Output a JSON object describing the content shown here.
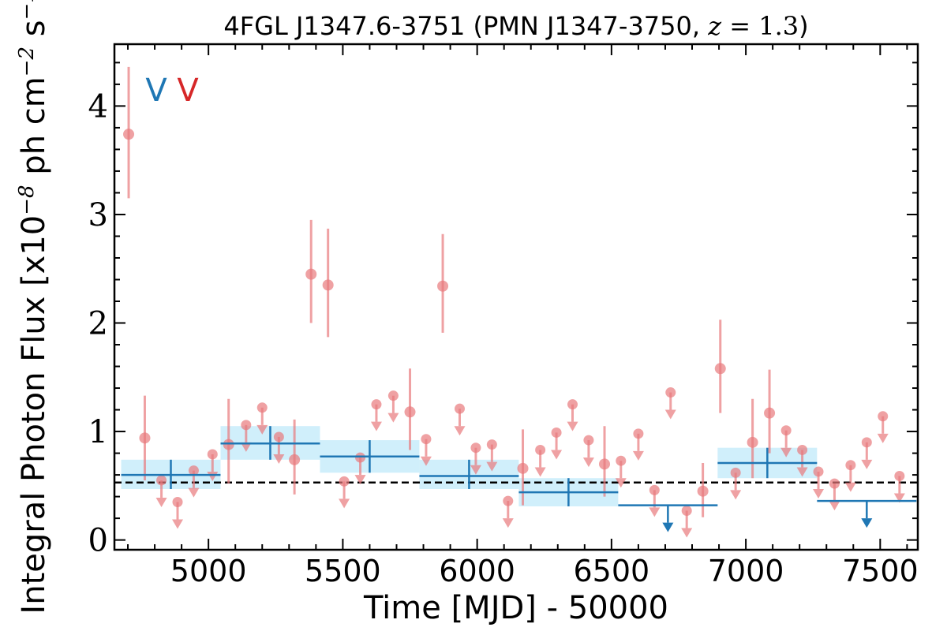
{
  "chart_data": {
    "type": "scatter",
    "title_parts": {
      "prefix": "4FGL J1347.6-3751 (PMN J1347-3750, ",
      "z_var": "z",
      "z_eq": " = 1.3",
      "suffix": ")"
    },
    "xlabel": "Time [MJD] - 50000",
    "ylabel_parts": {
      "a": "Integral Photon Flux [x10",
      "exp1": "−8",
      "b": " ph cm",
      "exp2": "−2",
      "c": " s",
      "exp3": "−1",
      "d": "]"
    },
    "xlim": [
      4650,
      7640
    ],
    "ylim": [
      -0.09,
      4.57
    ],
    "xticks": [
      5000,
      5500,
      6000,
      6500,
      7000,
      7500
    ],
    "yticks": [
      0,
      1,
      2,
      3,
      4
    ],
    "markers": [
      {
        "text": "V",
        "color": "#1f77b4"
      },
      {
        "text": "V",
        "color": "#d62728"
      }
    ],
    "reference_level": 0.53,
    "colors": {
      "short_bins": "#e8797c",
      "long_bins": "#1f77b4",
      "long_band": "#c8ecfa"
    },
    "series": [
      {
        "kind": "short-bin detections with error bars",
        "points": [
          {
            "x": 4703,
            "y": 3.74,
            "lo": 3.15,
            "hi": 4.36
          },
          {
            "x": 4763,
            "y": 0.94,
            "lo": 0.55,
            "hi": 1.33
          },
          {
            "x": 5075,
            "y": 0.88,
            "lo": 0.52,
            "hi": 1.3
          },
          {
            "x": 5320,
            "y": 0.74,
            "lo": 0.42,
            "hi": 1.11
          },
          {
            "x": 5382,
            "y": 2.45,
            "lo": 2.0,
            "hi": 2.95
          },
          {
            "x": 5445,
            "y": 2.35,
            "lo": 1.87,
            "hi": 2.87
          },
          {
            "x": 5750,
            "y": 1.18,
            "lo": 0.83,
            "hi": 1.58
          },
          {
            "x": 5872,
            "y": 2.34,
            "lo": 1.91,
            "hi": 2.82
          },
          {
            "x": 6170,
            "y": 0.66,
            "lo": 0.32,
            "hi": 1.02
          },
          {
            "x": 6474,
            "y": 0.7,
            "lo": 0.4,
            "hi": 1.05
          },
          {
            "x": 6840,
            "y": 0.45,
            "lo": 0.21,
            "hi": 0.71
          },
          {
            "x": 6905,
            "y": 1.58,
            "lo": 1.17,
            "hi": 2.03
          },
          {
            "x": 7025,
            "y": 0.9,
            "lo": 0.57,
            "hi": 1.3
          },
          {
            "x": 7088,
            "y": 1.17,
            "lo": 0.8,
            "hi": 1.57
          }
        ]
      },
      {
        "kind": "short-bin upper limits",
        "values": [
          {
            "x": 4825,
            "y": 0.55
          },
          {
            "x": 4885,
            "y": 0.35
          },
          {
            "x": 4945,
            "y": 0.64
          },
          {
            "x": 5015,
            "y": 0.79
          },
          {
            "x": 5140,
            "y": 1.06
          },
          {
            "x": 5200,
            "y": 1.22
          },
          {
            "x": 5262,
            "y": 0.95
          },
          {
            "x": 5505,
            "y": 0.54
          },
          {
            "x": 5565,
            "y": 0.76
          },
          {
            "x": 5625,
            "y": 1.25
          },
          {
            "x": 5688,
            "y": 1.33
          },
          {
            "x": 5810,
            "y": 0.93
          },
          {
            "x": 5935,
            "y": 1.21
          },
          {
            "x": 5995,
            "y": 0.85
          },
          {
            "x": 6055,
            "y": 0.88
          },
          {
            "x": 6115,
            "y": 0.36
          },
          {
            "x": 6235,
            "y": 0.83
          },
          {
            "x": 6295,
            "y": 0.99
          },
          {
            "x": 6355,
            "y": 1.25
          },
          {
            "x": 6415,
            "y": 0.92
          },
          {
            "x": 6535,
            "y": 0.73
          },
          {
            "x": 6600,
            "y": 0.98
          },
          {
            "x": 6660,
            "y": 0.46
          },
          {
            "x": 6720,
            "y": 1.36
          },
          {
            "x": 6780,
            "y": 0.27
          },
          {
            "x": 6962,
            "y": 0.62
          },
          {
            "x": 7150,
            "y": 1.01
          },
          {
            "x": 7210,
            "y": 0.83
          },
          {
            "x": 7270,
            "y": 0.63
          },
          {
            "x": 7330,
            "y": 0.52
          },
          {
            "x": 7390,
            "y": 0.69
          },
          {
            "x": 7450,
            "y": 0.9
          },
          {
            "x": 7510,
            "y": 1.14
          },
          {
            "x": 7572,
            "y": 0.59
          }
        ]
      },
      {
        "kind": "long-bin detections with bands",
        "bins": [
          {
            "x0": 4675,
            "x1": 5045,
            "y": 0.6,
            "lo": 0.47,
            "hi": 0.74
          },
          {
            "x0": 5045,
            "x1": 5415,
            "y": 0.89,
            "lo": 0.74,
            "hi": 1.05
          },
          {
            "x0": 5415,
            "x1": 5785,
            "y": 0.77,
            "lo": 0.62,
            "hi": 0.92
          },
          {
            "x0": 5785,
            "x1": 6155,
            "y": 0.59,
            "lo": 0.47,
            "hi": 0.74
          },
          {
            "x0": 6155,
            "x1": 6525,
            "y": 0.44,
            "lo": 0.31,
            "hi": 0.57
          },
          {
            "x0": 6895,
            "x1": 7265,
            "y": 0.71,
            "lo": 0.57,
            "hi": 0.85
          }
        ]
      },
      {
        "kind": "long-bin upper limits",
        "bins": [
          {
            "x0": 6525,
            "x1": 6895,
            "y": 0.32
          },
          {
            "x0": 7265,
            "x1": 7635,
            "y": 0.36
          }
        ]
      }
    ]
  }
}
